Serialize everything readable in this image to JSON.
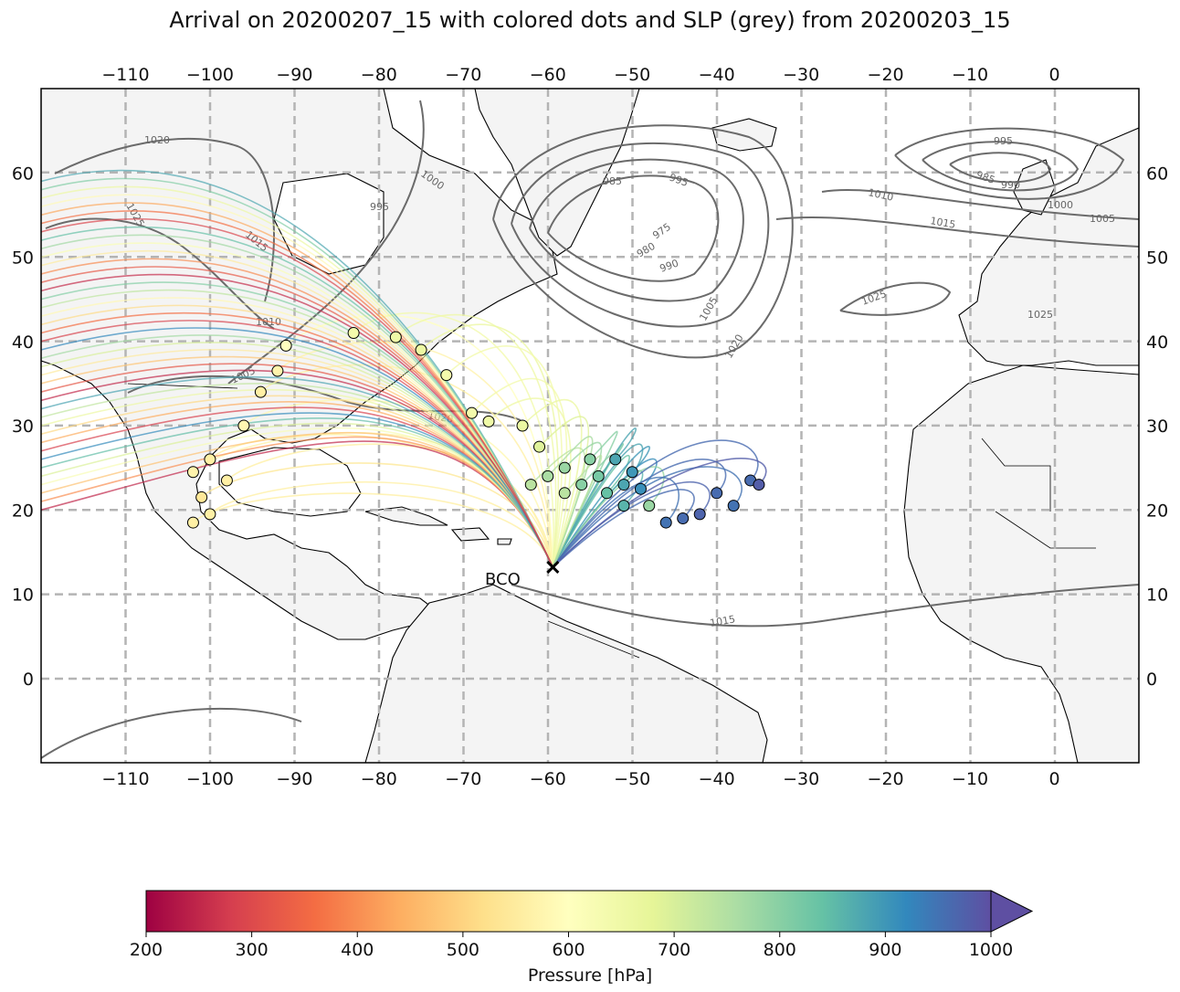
{
  "title": "Arrival on 20200207_15 with colored dots and SLP (grey) from 20200203_15",
  "map": {
    "projection": "PlateCarree",
    "lon_range": [
      -120,
      10
    ],
    "lat_range": [
      -10,
      70
    ],
    "lon_ticks": [
      -110,
      -100,
      -90,
      -80,
      -70,
      -60,
      -50,
      -40,
      -30,
      -20,
      -10,
      0
    ],
    "lat_ticks": [
      0,
      10,
      20,
      30,
      40,
      50,
      60
    ],
    "gridlines": true,
    "land_color": "#f4f4f4",
    "coast_color": "#000000",
    "isobar_color": "#6b6b6b",
    "isobar_labels": [
      "1020",
      "1025",
      "1015",
      "1010",
      "1005",
      "1000",
      "995",
      "985",
      "995",
      "975",
      "980",
      "990",
      "1005",
      "1020",
      "1025",
      "1010",
      "995",
      "985",
      "990",
      "1000",
      "1005",
      "1015",
      "1015",
      "1020",
      "1025"
    ]
  },
  "station": {
    "name": "BCO",
    "lon": -59.4,
    "lat": 13.2,
    "marker": "x"
  },
  "colorbar": {
    "label": "Pressure [hPa]",
    "min": 200,
    "max": 1000,
    "ticks": [
      "200",
      "300",
      "400",
      "500",
      "600",
      "700",
      "800",
      "900",
      "1000"
    ],
    "extend": "max",
    "colormap": "Spectral",
    "colors": [
      "#9e0142",
      "#d53e4f",
      "#f46d43",
      "#fdae61",
      "#fee08b",
      "#ffffbf",
      "#e6f598",
      "#abdda4",
      "#66c2a5",
      "#3288bd",
      "#5e4fa2"
    ]
  },
  "chart_data": {
    "type": "scatter",
    "description_series": "trajectory origin points colored by pressure (hPa)",
    "points": [
      {
        "lon": -102,
        "lat": 18.5,
        "p": 560
      },
      {
        "lon": -100,
        "lat": 19.5,
        "p": 560
      },
      {
        "lon": -101,
        "lat": 21.5,
        "p": 540
      },
      {
        "lon": -98,
        "lat": 23.5,
        "p": 560
      },
      {
        "lon": -102,
        "lat": 24.5,
        "p": 570
      },
      {
        "lon": -100,
        "lat": 26,
        "p": 560
      },
      {
        "lon": -96,
        "lat": 30,
        "p": 580
      },
      {
        "lon": -94,
        "lat": 34,
        "p": 560
      },
      {
        "lon": -92,
        "lat": 36.5,
        "p": 570
      },
      {
        "lon": -91,
        "lat": 39.5,
        "p": 600
      },
      {
        "lon": -83,
        "lat": 41,
        "p": 640
      },
      {
        "lon": -78,
        "lat": 40.5,
        "p": 650
      },
      {
        "lon": -75,
        "lat": 39,
        "p": 660
      },
      {
        "lon": -72,
        "lat": 36,
        "p": 640
      },
      {
        "lon": -69,
        "lat": 31.5,
        "p": 640
      },
      {
        "lon": -67,
        "lat": 30.5,
        "p": 650
      },
      {
        "lon": -63,
        "lat": 30,
        "p": 660
      },
      {
        "lon": -61,
        "lat": 27.5,
        "p": 690
      },
      {
        "lon": -62,
        "lat": 23,
        "p": 740
      },
      {
        "lon": -60,
        "lat": 24,
        "p": 760
      },
      {
        "lon": -58,
        "lat": 25,
        "p": 780
      },
      {
        "lon": -56,
        "lat": 23,
        "p": 800
      },
      {
        "lon": -54,
        "lat": 24,
        "p": 820
      },
      {
        "lon": -53,
        "lat": 22,
        "p": 840
      },
      {
        "lon": -51,
        "lat": 23,
        "p": 880
      },
      {
        "lon": -50,
        "lat": 24.5,
        "p": 900
      },
      {
        "lon": -49,
        "lat": 22.5,
        "p": 910
      },
      {
        "lon": -51,
        "lat": 20.5,
        "p": 860
      },
      {
        "lon": -48,
        "lat": 20.5,
        "p": 780
      },
      {
        "lon": -46,
        "lat": 18.5,
        "p": 950
      },
      {
        "lon": -44,
        "lat": 19,
        "p": 960
      },
      {
        "lon": -42,
        "lat": 19.5,
        "p": 970
      },
      {
        "lon": -40,
        "lat": 22,
        "p": 960
      },
      {
        "lon": -38,
        "lat": 20.5,
        "p": 950
      },
      {
        "lon": -36,
        "lat": 23.5,
        "p": 960
      },
      {
        "lon": -35,
        "lat": 23,
        "p": 980
      },
      {
        "lon": -55,
        "lat": 26,
        "p": 800
      },
      {
        "lon": -52,
        "lat": 26,
        "p": 880
      },
      {
        "lon": -58,
        "lat": 22,
        "p": 740
      }
    ]
  }
}
